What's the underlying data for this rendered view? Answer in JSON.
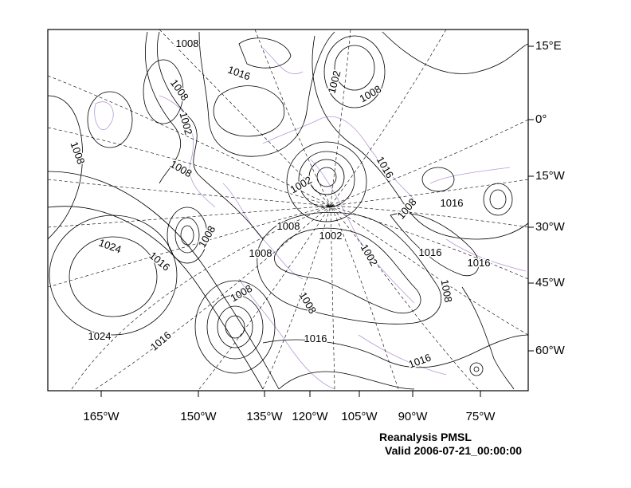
{
  "title": {
    "line1": "Reanalysis PMSL",
    "line2": "Valid 2006-07-21_00:00:00"
  },
  "x_axis_labels": [
    "165°W",
    "150°W",
    "135°W",
    "120°W",
    "105°W",
    "90°W",
    "75°W"
  ],
  "y_axis_labels": [
    "15°E",
    "0°",
    "15°W",
    "30°W",
    "45°W",
    "60°W"
  ],
  "contour_labels": [
    "1008",
    "1008",
    "1016",
    "1002",
    "1008",
    "1002",
    "1008",
    "1008",
    "1016",
    "1002",
    "1008",
    "1016",
    "1008",
    "1002",
    "1008",
    "1024",
    "1016",
    "1008",
    "1002",
    "1016",
    "1016",
    "1008",
    "1008",
    "1008",
    "1024",
    "1016",
    "1016",
    "1016"
  ],
  "colors": {
    "contour": "#000000",
    "coastline": "#b89ad8",
    "grid": "#000000"
  }
}
